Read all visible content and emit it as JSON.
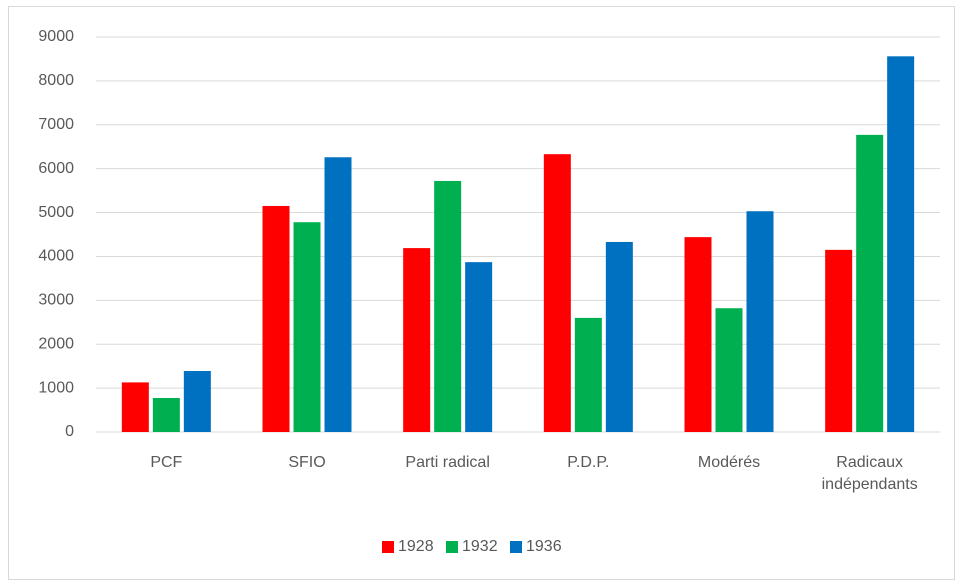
{
  "chart_data": {
    "type": "bar",
    "categories": [
      "PCF",
      "SFIO",
      "Parti radical",
      "P.D.P.",
      "Modérés",
      "Radicaux indépendants"
    ],
    "series": [
      {
        "name": "1928",
        "color": "#ff0000",
        "values": [
          1130,
          5150,
          4190,
          6330,
          4440,
          4150
        ]
      },
      {
        "name": "1932",
        "color": "#00b050",
        "values": [
          775,
          4780,
          5720,
          2600,
          2820,
          6770
        ]
      },
      {
        "name": "1936",
        "color": "#0070c0",
        "values": [
          1390,
          6260,
          3870,
          4330,
          5030,
          8560
        ]
      }
    ],
    "ylim": [
      0,
      9000
    ],
    "yticks": [
      0,
      1000,
      2000,
      3000,
      4000,
      5000,
      6000,
      7000,
      8000,
      9000
    ],
    "grid": true,
    "legend": "bottom"
  }
}
